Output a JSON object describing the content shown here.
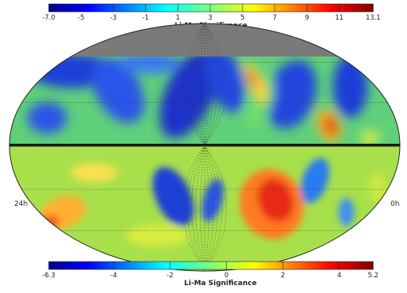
{
  "chart_data": {
    "type": "heatmap",
    "projection": "mollweide",
    "panels": [
      {
        "name": "north",
        "colorbar": {
          "title": "Li-Ma Significance",
          "min": -7.0,
          "max": 13.1,
          "ticks": [
            -7.0,
            -5,
            -3,
            -1,
            1,
            3,
            5,
            7,
            9,
            11,
            13.1
          ],
          "tick_labels": [
            "-7.0",
            "-5",
            "-3",
            "-1",
            "1",
            "3",
            "5",
            "7",
            "9",
            "11",
            "13.1"
          ],
          "placement": "top"
        }
      },
      {
        "name": "south",
        "colorbar": {
          "title": "Li-Ma Significance",
          "min": -6.3,
          "max": 5.2,
          "ticks": [
            -6.3,
            -4,
            -2,
            0,
            2,
            4,
            5.2
          ],
          "tick_labels": [
            "-6.3",
            "-4",
            "-2",
            "0",
            "2",
            "4",
            "5.2"
          ],
          "placement": "bottom"
        }
      }
    ],
    "ra_labels": {
      "left": "24h",
      "right": "0h"
    },
    "no_coverage_region": "dec > ~60 deg",
    "colormap": "jet",
    "grid": true
  },
  "colors": {
    "no_data": "#7a7a7a",
    "grid": "#333333",
    "equator_band": "#111111"
  }
}
